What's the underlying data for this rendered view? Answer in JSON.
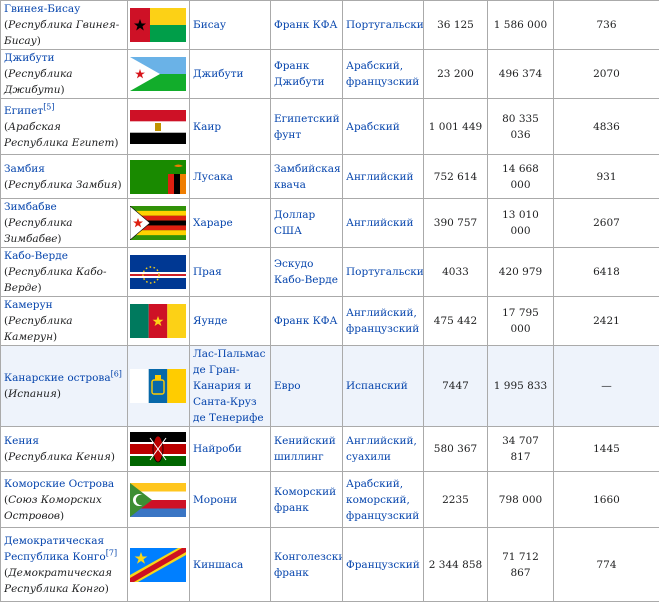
{
  "rows": [
    {
      "country": "Гвинея-Бисау",
      "official": "Республика Гвинея-Бисау",
      "ref": "",
      "flag_icon": "guinea-bissau-flag-icon",
      "capital": "Бисау",
      "currency": "Франк КФА",
      "language": "Португальский",
      "area": "36 125",
      "population": "1 586 000",
      "density": "736"
    },
    {
      "country": "Джибути",
      "official": "Республика Джибути",
      "ref": "",
      "flag_icon": "djibouti-flag-icon",
      "capital": "Джибути",
      "currency": "Франк Джибути",
      "language": "Арабский, французский",
      "area": "23 200",
      "population": "496 374",
      "density": "2070"
    },
    {
      "country": "Египет",
      "official": "Арабская Республика Египет",
      "ref": "[5]",
      "flag_icon": "egypt-flag-icon",
      "capital": "Каир",
      "currency": "Египетский фунт",
      "language": "Арабский",
      "area": "1 001 449",
      "population": "80 335 036",
      "density": "4836"
    },
    {
      "country": "Замбия",
      "official": "Республика Замбия",
      "ref": "",
      "flag_icon": "zambia-flag-icon",
      "capital": "Лусака",
      "currency": "Замбийская квача",
      "language": "Английский",
      "area": "752 614",
      "population": "14 668 000",
      "density": "931"
    },
    {
      "country": "Зимбабве",
      "official": "Республика Зимбабве",
      "ref": "",
      "flag_icon": "zimbabwe-flag-icon",
      "capital": "Хараре",
      "currency": "Доллар США",
      "language": "Английский",
      "area": "390 757",
      "population": "13 010 000",
      "density": "2607"
    },
    {
      "country": "Кабо-Верде",
      "official": "Республика Кабо-Верде",
      "ref": "",
      "flag_icon": "cape-verde-flag-icon",
      "capital": "Прая",
      "currency": "Эскудо Кабо-Верде",
      "language": "Португальский",
      "area": "4033",
      "population": "420 979",
      "density": "6418"
    },
    {
      "country": "Камерун",
      "official": "Республика Камерун",
      "ref": "",
      "flag_icon": "cameroon-flag-icon",
      "capital": "Яунде",
      "currency": "Франк КФА",
      "language": "Английский, французский",
      "area": "475 442",
      "population": "17 795 000",
      "density": "2421"
    },
    {
      "country": "Канарские острова",
      "official": "Испания",
      "ref": "[6]",
      "flag_icon": "canary-islands-flag-icon",
      "capital": "Лас-Пальмас де Гран-Канария и Санта-Круз де Тенерифе",
      "currency": "Евро",
      "language": "Испанский",
      "area": "7447",
      "population": "1 995 833",
      "density": "—"
    },
    {
      "country": "Кения",
      "official": "Республика Кения",
      "ref": "",
      "flag_icon": "kenya-flag-icon",
      "capital": "Найроби",
      "currency": "Кенийский шиллинг",
      "language": "Английский, суахили",
      "area": "580 367",
      "population": "34 707 817",
      "density": "1445"
    },
    {
      "country": "Коморские Острова",
      "official": "Союз Коморских Островов",
      "ref": "",
      "flag_icon": "comoros-flag-icon",
      "capital": "Морони",
      "currency": "Коморский франк",
      "language": "Арабский, коморский, французский",
      "area": "2235",
      "population": "798 000",
      "density": "1660"
    },
    {
      "country": "Демократическая Республика Конго",
      "official": "Демократическая Республика Конго",
      "ref": "[7]",
      "flag_icon": "dr-congo-flag-icon",
      "capital": "Киншаса",
      "currency": "Конголезский франк",
      "language": "Французский",
      "area": "2 344 858",
      "population": "71 712 867",
      "density": "774"
    }
  ],
  "colors": {
    "link": "#0645ad",
    "border": "#aaaaaa",
    "highlight_row": "#eef3fb"
  }
}
